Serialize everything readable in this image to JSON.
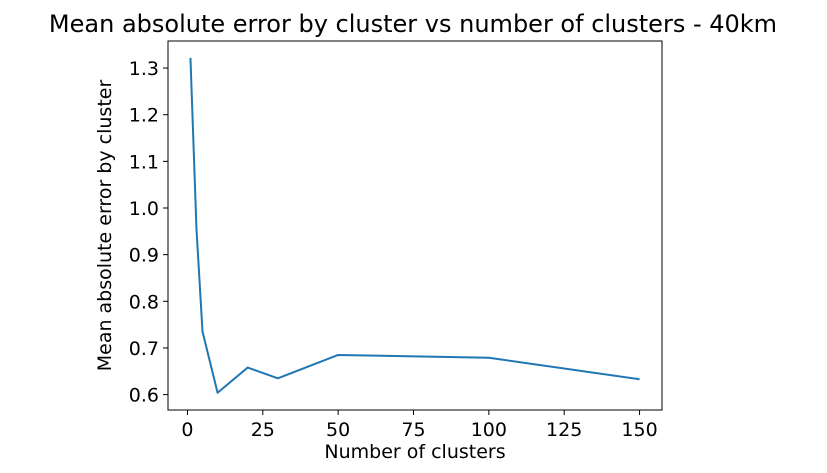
{
  "chart_data": {
    "type": "line",
    "title": "Mean absolute error by cluster vs number of clusters - 40km",
    "xlabel": "Number of clusters",
    "ylabel": "Mean absolute error by cluster",
    "xlim": [
      -6.45,
      157.45
    ],
    "ylim": [
      0.567,
      1.358
    ],
    "xticks": [
      0,
      25,
      50,
      75,
      100,
      125,
      150
    ],
    "xtick_labels": [
      "0",
      "25",
      "50",
      "75",
      "100",
      "125",
      "150"
    ],
    "yticks": [
      0.6,
      0.7,
      0.8,
      0.9,
      1.0,
      1.1,
      1.2,
      1.3
    ],
    "ytick_labels": [
      "0.6",
      "0.7",
      "0.8",
      "0.9",
      "1.0",
      "1.1",
      "1.2",
      "1.3"
    ],
    "grid": false,
    "series": [
      {
        "color": "#1f77b4",
        "x": [
          1,
          3,
          5,
          10,
          20,
          30,
          50,
          100,
          150
        ],
        "y": [
          1.322,
          0.955,
          0.735,
          0.604,
          0.658,
          0.635,
          0.685,
          0.679,
          0.633
        ]
      }
    ]
  }
}
